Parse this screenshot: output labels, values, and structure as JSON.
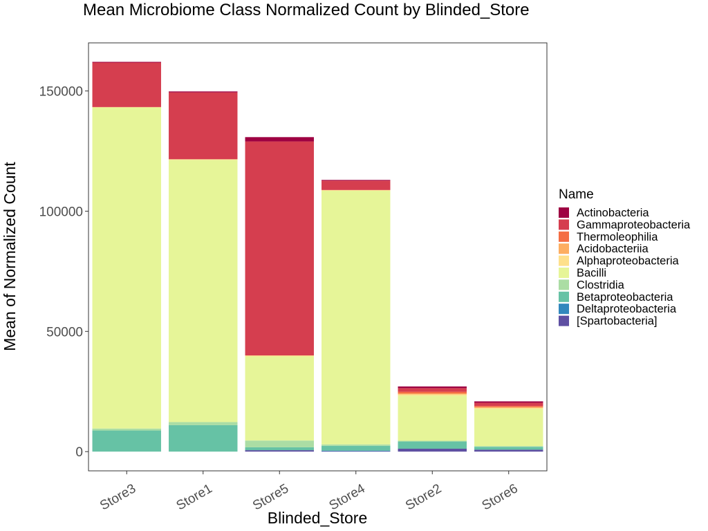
{
  "chart_data": {
    "type": "bar",
    "stacked": true,
    "title": "Mean Microbiome Class Normalized Count by Blinded_Store",
    "xlabel": "Blinded_Store",
    "ylabel": "Mean of Normalized Count",
    "categories": [
      "Store3",
      "Store1",
      "Store5",
      "Store4",
      "Store2",
      "Store6"
    ],
    "ylim": [
      -8000,
      170000
    ],
    "yticks": [
      0,
      50000,
      100000,
      150000
    ],
    "ytick_labels": [
      "0",
      "50000",
      "100000",
      "150000"
    ],
    "grid": false,
    "legend": {
      "title": "Name",
      "position": "right"
    },
    "series": [
      {
        "name": "Actinobacteria",
        "color": "#9E0142",
        "values": [
          300,
          400,
          1800,
          300,
          700,
          600
        ]
      },
      {
        "name": "Gammaproteobacteria",
        "color": "#D53E4F",
        "values": [
          18500,
          27800,
          89000,
          3900,
          1500,
          1300
        ]
      },
      {
        "name": "Thermoleophilia",
        "color": "#F46D43",
        "values": [
          0,
          0,
          0,
          0,
          700,
          500
        ]
      },
      {
        "name": "Acidobacteriia",
        "color": "#FDAE61",
        "values": [
          0,
          0,
          0,
          0,
          400,
          300
        ]
      },
      {
        "name": "Alphaproteobacteria",
        "color": "#FEE08B",
        "values": [
          200,
          300,
          400,
          300,
          500,
          400
        ]
      },
      {
        "name": "Bacilli",
        "color": "#E6F598",
        "values": [
          133500,
          109000,
          35000,
          105500,
          18800,
          15500
        ]
      },
      {
        "name": "Clostridia",
        "color": "#ABDDA4",
        "values": [
          800,
          1300,
          2800,
          600,
          300,
          300
        ]
      },
      {
        "name": "Betaproteobacteria",
        "color": "#66C2A5",
        "values": [
          8800,
          11000,
          1200,
          2000,
          3000,
          1200
        ]
      },
      {
        "name": "Deltaproteobacteria",
        "color": "#3288BD",
        "values": [
          0,
          0,
          0,
          200,
          0,
          0
        ]
      },
      {
        "name": "[Spartobacteria]",
        "color": "#5E4FA2",
        "values": [
          0,
          0,
          600,
          200,
          1200,
          800
        ]
      }
    ]
  }
}
